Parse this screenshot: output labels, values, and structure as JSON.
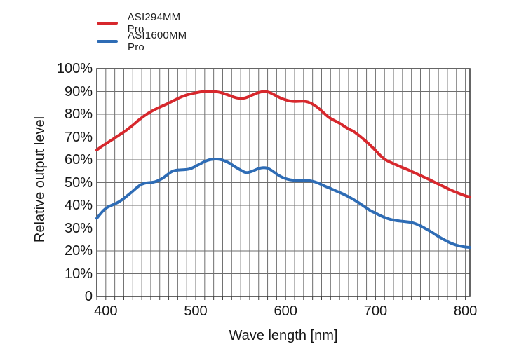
{
  "colors": {
    "background": "#ffffff",
    "grid": "#6e6e6e",
    "border": "#3f3f3f",
    "text": "#161616",
    "series_red": "#d7282d",
    "series_blue": "#2e6cb5"
  },
  "chart_data": {
    "type": "line",
    "title": "",
    "xlabel": "Wave length [nm]",
    "ylabel": "Relative output level",
    "x_range": [
      390,
      805
    ],
    "y_range": [
      0,
      100
    ],
    "x_major_ticks": [
      400,
      500,
      600,
      700,
      800
    ],
    "x_grid_step_nm": 10,
    "y_grid_step_pct": 10,
    "y_tick_labels": [
      "100%",
      "90%",
      "80%",
      "70%",
      "60%",
      "50%",
      "40%",
      "30%",
      "20%",
      "10%",
      "0"
    ],
    "grid": true,
    "legend_position": "top-left",
    "x": [
      390,
      395,
      400,
      405,
      410,
      415,
      420,
      425,
      430,
      435,
      440,
      445,
      450,
      455,
      460,
      465,
      470,
      475,
      480,
      485,
      490,
      495,
      500,
      505,
      510,
      515,
      520,
      525,
      530,
      535,
      540,
      545,
      550,
      555,
      560,
      565,
      570,
      575,
      580,
      585,
      590,
      595,
      600,
      605,
      610,
      615,
      620,
      625,
      630,
      635,
      640,
      645,
      650,
      655,
      660,
      665,
      670,
      675,
      680,
      685,
      690,
      695,
      700,
      705,
      710,
      715,
      720,
      725,
      730,
      735,
      740,
      745,
      750,
      755,
      760,
      765,
      770,
      775,
      780,
      785,
      790,
      795,
      800,
      805
    ],
    "series": [
      {
        "name": "ASI294MM Pro",
        "color": "#d7282d",
        "values": [
          64.3,
          65.8,
          67.0,
          68.3,
          69.6,
          70.9,
          72.2,
          73.6,
          75.2,
          76.9,
          78.5,
          79.9,
          81.1,
          82.2,
          83.1,
          84.0,
          84.9,
          85.9,
          86.9,
          87.8,
          88.5,
          89.0,
          89.4,
          89.8,
          90.0,
          90.1,
          90.0,
          89.8,
          89.3,
          88.6,
          87.9,
          87.2,
          86.9,
          87.1,
          87.9,
          88.8,
          89.6,
          90.0,
          89.9,
          89.1,
          88.0,
          87.0,
          86.3,
          85.8,
          85.6,
          85.7,
          85.8,
          85.4,
          84.5,
          83.2,
          81.5,
          79.6,
          78.1,
          77.1,
          76.1,
          74.8,
          73.5,
          72.7,
          71.2,
          69.6,
          67.9,
          66.1,
          64.1,
          62.0,
          60.2,
          59.2,
          58.3,
          57.4,
          56.6,
          55.8,
          54.9,
          54.0,
          53.1,
          52.2,
          51.3,
          50.3,
          49.3,
          48.4,
          47.4,
          46.5,
          45.7,
          44.9,
          44.2,
          43.6
        ]
      },
      {
        "name": "ASI1600MM Pro",
        "color": "#2e6cb5",
        "values": [
          34.3,
          36.8,
          38.8,
          39.8,
          40.6,
          41.6,
          43.0,
          44.6,
          46.2,
          48.0,
          49.4,
          49.9,
          50.0,
          50.3,
          51.2,
          52.3,
          54.0,
          55.2,
          55.5,
          55.6,
          55.7,
          56.1,
          57.2,
          58.2,
          59.3,
          60.0,
          60.3,
          60.3,
          59.9,
          59.1,
          57.9,
          56.6,
          55.5,
          54.3,
          54.5,
          55.3,
          56.2,
          56.6,
          56.4,
          55.2,
          53.7,
          52.5,
          51.7,
          51.2,
          51.0,
          51.0,
          51.0,
          50.9,
          50.6,
          50.0,
          49.1,
          48.2,
          47.4,
          46.5,
          45.7,
          44.8,
          43.8,
          42.7,
          41.5,
          40.2,
          38.8,
          37.5,
          36.6,
          35.6,
          34.7,
          34.0,
          33.5,
          33.2,
          33.0,
          32.8,
          32.5,
          31.9,
          31.0,
          29.9,
          28.8,
          27.6,
          26.3,
          25.2,
          24.1,
          23.2,
          22.5,
          22.0,
          21.7,
          21.5
        ]
      }
    ]
  }
}
